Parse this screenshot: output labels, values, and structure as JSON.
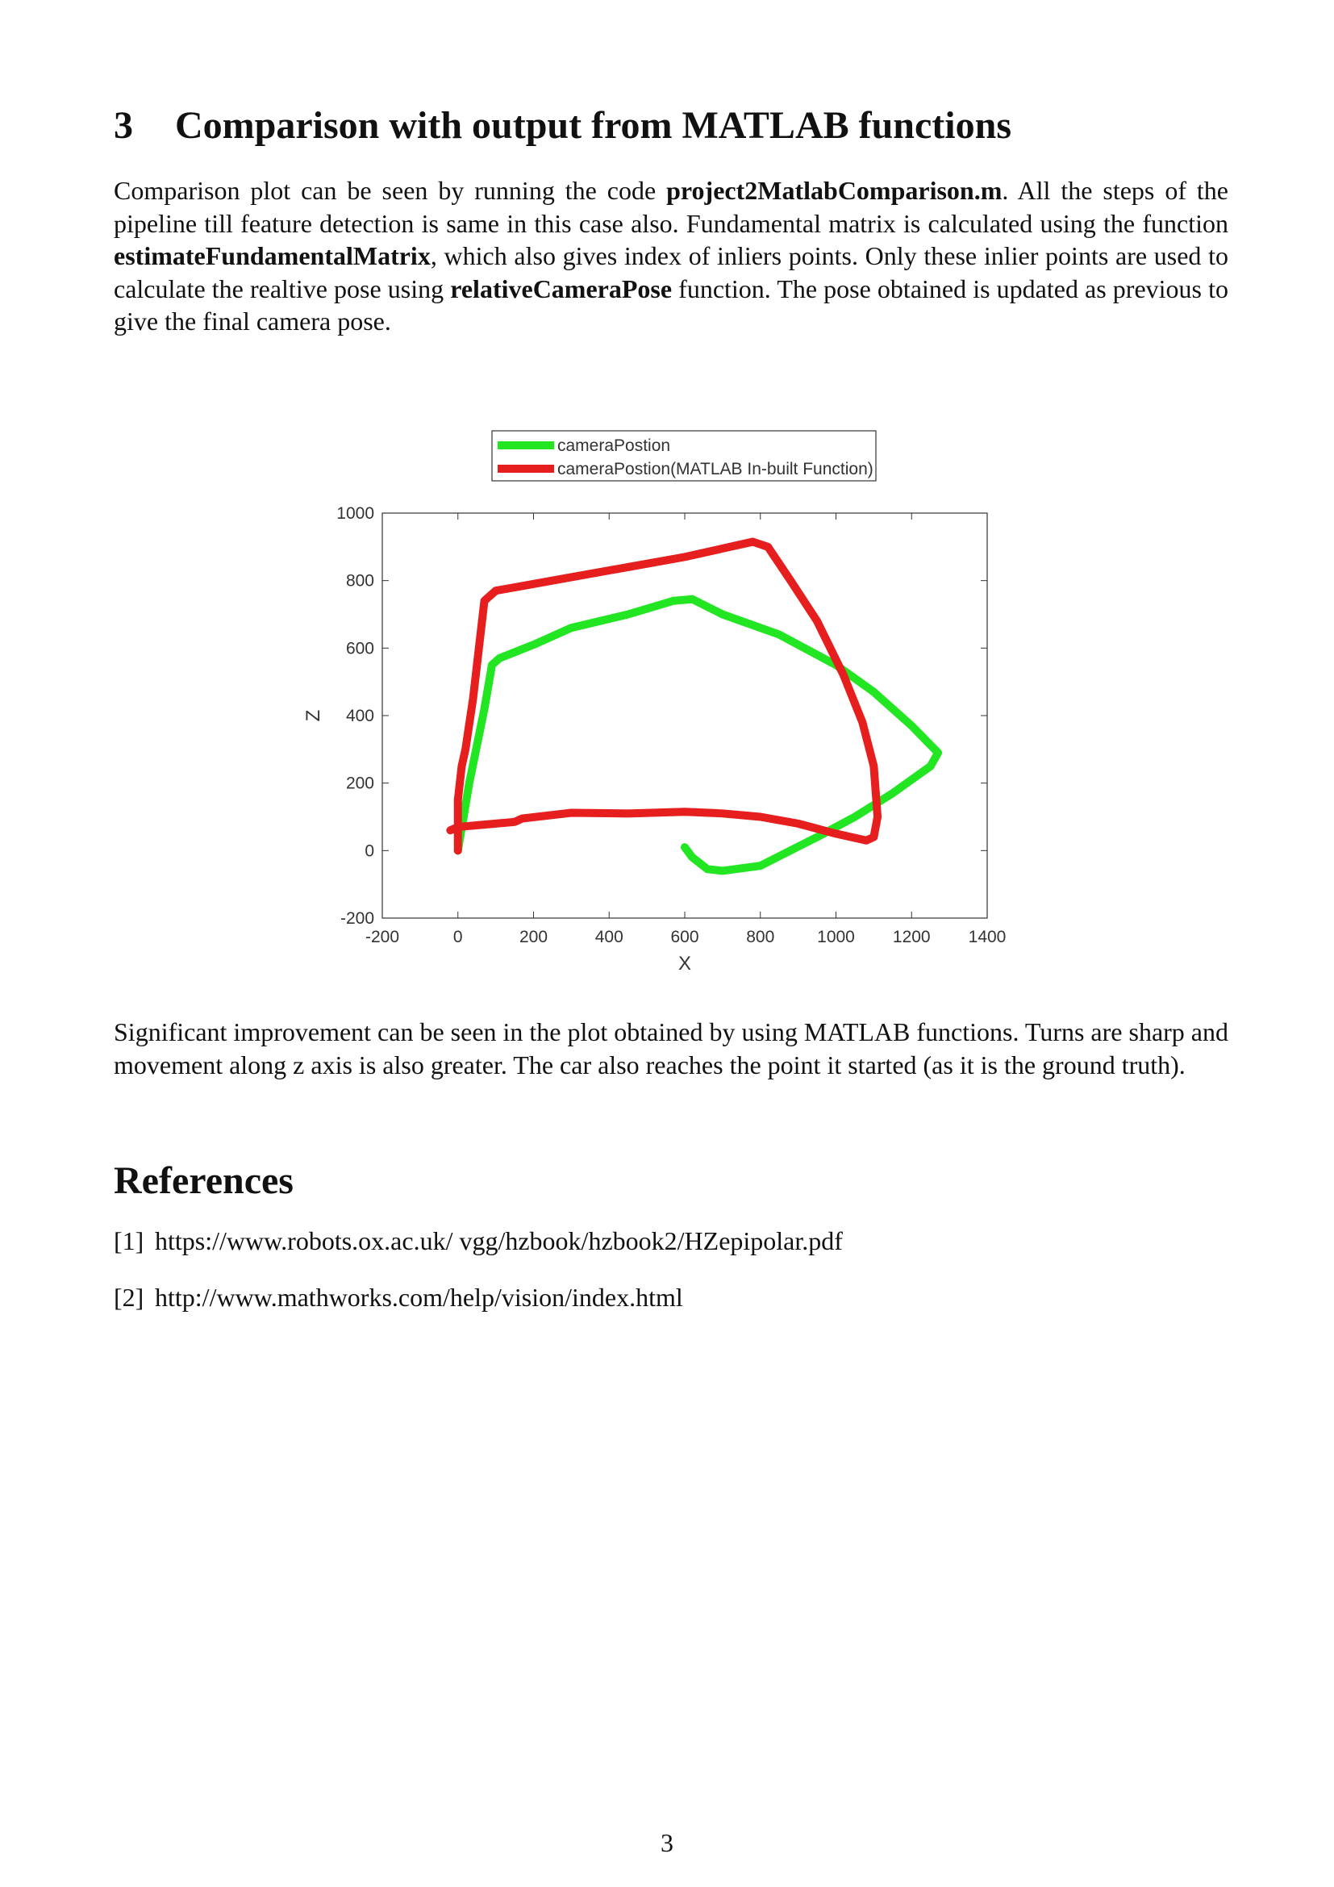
{
  "section": {
    "number": "3",
    "title": "Comparison with output from MATLAB functions"
  },
  "paragraph1": [
    {
      "text": "Comparison plot can be seen by running the code ",
      "bold": false
    },
    {
      "text": "project2MatlabComparison.m",
      "bold": true
    },
    {
      "text": ". All the steps of the pipeline till feature detection is same in this case also. Fundamental matrix is calculated using the function ",
      "bold": false
    },
    {
      "text": "estimateFundamentalMatrix",
      "bold": true
    },
    {
      "text": ", which also gives index of inliers points. Only these inlier points are used to calculate the realtive pose using ",
      "bold": false
    },
    {
      "text": "relativeCameraPose",
      "bold": true
    },
    {
      "text": " function. The pose obtained is updated as previous to give the final camera pose.",
      "bold": false
    }
  ],
  "chart_data": {
    "type": "line",
    "xlabel": "X",
    "ylabel": "Z",
    "xlim": [
      -200,
      1400
    ],
    "xticks": [
      -200,
      0,
      200,
      400,
      600,
      800,
      1000,
      1200,
      1400
    ],
    "ylim": [
      -200,
      1000
    ],
    "yticks": [
      -200,
      0,
      200,
      400,
      600,
      800,
      1000
    ],
    "legend": "top-outside",
    "series": [
      {
        "name": "cameraPostion",
        "color": "#22e622",
        "x": [
          0,
          30,
          70,
          90,
          110,
          200,
          300,
          450,
          570,
          620,
          700,
          850,
          1000,
          1100,
          1200,
          1270,
          1250,
          1150,
          1050,
          950,
          800,
          700,
          660,
          620,
          600
        ],
        "values": [
          0,
          200,
          420,
          550,
          570,
          610,
          660,
          700,
          740,
          745,
          700,
          640,
          550,
          470,
          370,
          290,
          250,
          170,
          100,
          40,
          -45,
          -60,
          -55,
          -20,
          10
        ]
      },
      {
        "name": "cameraPostion(MATLAB In-built Function)",
        "color": "#e61e1e",
        "x": [
          0,
          0,
          10,
          20,
          40,
          70,
          100,
          150,
          300,
          450,
          600,
          700,
          780,
          820,
          880,
          950,
          1020,
          1070,
          1100,
          1110,
          1100,
          1080,
          1000,
          900,
          800,
          700,
          600,
          450,
          300,
          170,
          150,
          100,
          0,
          -20
        ],
        "values": [
          0,
          150,
          250,
          300,
          450,
          740,
          770,
          780,
          810,
          840,
          870,
          895,
          915,
          900,
          800,
          680,
          520,
          380,
          250,
          100,
          40,
          30,
          50,
          80,
          100,
          110,
          115,
          110,
          112,
          95,
          85,
          80,
          70,
          60
        ]
      }
    ]
  },
  "paragraph2": "Significant improvement can be seen in the plot obtained by using MATLAB functions. Turns are sharp and movement along z axis is also greater. The car also reaches the point it started (as it is the ground truth).",
  "references": {
    "title": "References",
    "items": [
      {
        "label": "[1]",
        "text": "https://www.robots.ox.ac.uk/ vgg/hzbook/hzbook2/HZepipolar.pdf"
      },
      {
        "label": "[2]",
        "text": "http://www.mathworks.com/help/vision/index.html"
      }
    ]
  },
  "page_number": "3"
}
